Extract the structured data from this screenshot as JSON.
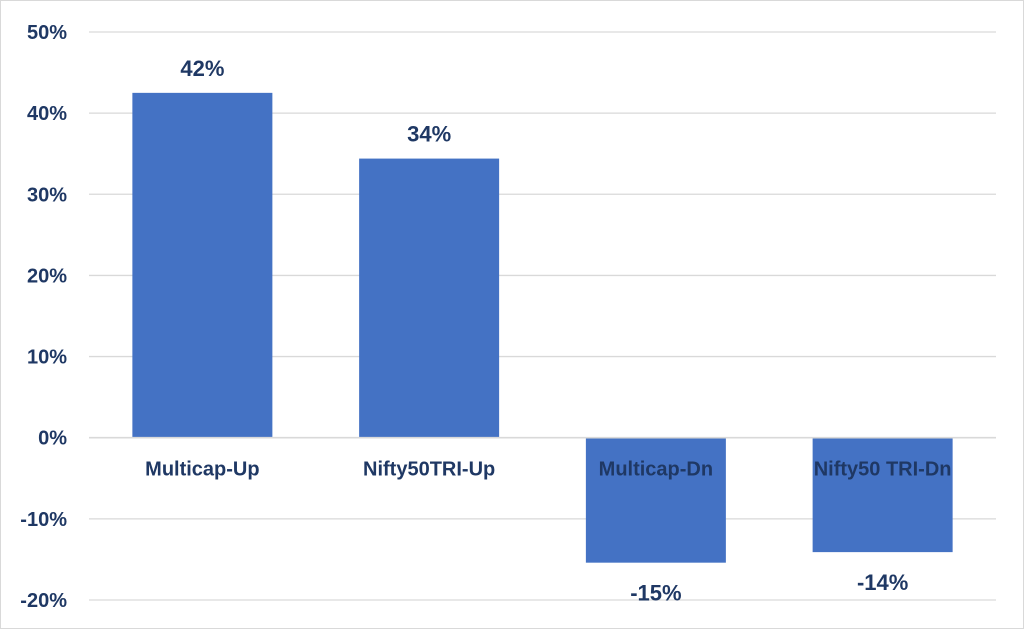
{
  "chart_data": {
    "type": "bar",
    "categories": [
      "Multicap-Up",
      "Nifty50TRI-Up",
      "Multicap-Dn",
      "Nifty50 TRI-Dn"
    ],
    "values": [
      42.5,
      34.4,
      -15.4,
      -14.1
    ],
    "data_labels": [
      "42%",
      "34%",
      "-15%",
      "-14%"
    ],
    "ylim": [
      -20,
      50
    ],
    "yticks": [
      50,
      40,
      30,
      20,
      10,
      0,
      -10,
      -20
    ],
    "ytick_labels": [
      "50%",
      "40%",
      "30%",
      "20%",
      "10%",
      "0%",
      "-10%",
      "-20%"
    ],
    "grid": true,
    "legend": "none"
  },
  "colors": {
    "bar": "#4472c4",
    "grid": "#d9d9d9",
    "text": "#1f3864"
  }
}
